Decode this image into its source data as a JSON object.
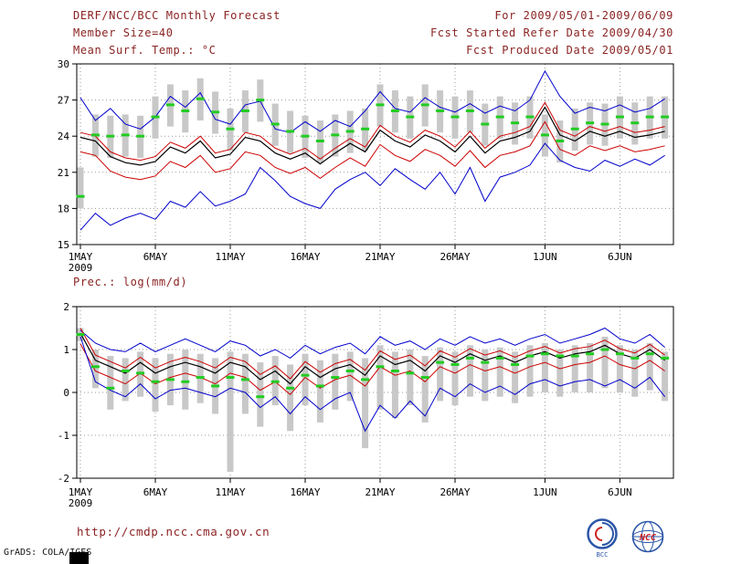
{
  "palette": {
    "header_text": "#8b2323",
    "grid": "#9a9a9a",
    "bar": "#c8c8c8",
    "obs": "#22cc22",
    "extreme": "#0000cc",
    "quartile": "#cc0000",
    "mean": "#000000"
  },
  "header": {
    "title": "DERF/NCC/BCC Monthly Forecast",
    "member_size": "Member Size=40",
    "variable": "Mean Surf. Temp.: °C",
    "period": "For 2009/05/01-2009/06/09",
    "refer_date": "Fcst Started Refer Date 2009/04/30",
    "produced_date": "Fcst Produced Date 2009/05/01"
  },
  "footer": {
    "url": "http://cmdp.ncc.cma.gov.cn",
    "credit": "GrADS: COLA/IGES",
    "logos": [
      {
        "label": "BCC"
      },
      {
        "label": "NCC"
      }
    ]
  },
  "chart_data": [
    {
      "type": "line",
      "title": "Mean Surf. Temp.: °C",
      "xlabel": "",
      "ylabel": "",
      "grid": true,
      "x_range": [
        1,
        40
      ],
      "ylim": [
        15,
        30
      ],
      "yticks": [
        15,
        18,
        21,
        24,
        27,
        30
      ],
      "x_ticks": [
        {
          "day": 1,
          "label": "1MAY",
          "sub": "2009"
        },
        {
          "day": 6,
          "label": "6MAY"
        },
        {
          "day": 11,
          "label": "11MAY"
        },
        {
          "day": 16,
          "label": "16MAY"
        },
        {
          "day": 21,
          "label": "21MAY"
        },
        {
          "day": 26,
          "label": "26MAY"
        },
        {
          "day": 32,
          "label": "1JUN"
        },
        {
          "day": 37,
          "label": "6JUN"
        }
      ],
      "bars": {
        "name": "ensemble-spread",
        "color": "#c8c8c8",
        "low": [
          18.0,
          22.3,
          22.2,
          22.3,
          22.2,
          23.8,
          24.8,
          24.3,
          25.3,
          24.2,
          22.8,
          24.3,
          25.2,
          23.2,
          22.6,
          22.2,
          21.8,
          22.3,
          22.6,
          22.8,
          24.8,
          24.3,
          23.8,
          24.8,
          24.3,
          23.8,
          24.3,
          23.2,
          23.8,
          23.3,
          23.8,
          22.3,
          21.8,
          22.8,
          23.3,
          23.2,
          23.8,
          23.3,
          23.8,
          23.8
        ],
        "high": [
          21.4,
          25.8,
          25.7,
          25.8,
          25.7,
          27.3,
          28.3,
          27.8,
          28.8,
          27.7,
          26.3,
          27.8,
          28.7,
          26.7,
          26.1,
          25.7,
          25.3,
          25.8,
          26.1,
          26.3,
          28.3,
          27.8,
          27.3,
          28.3,
          27.8,
          27.3,
          27.8,
          26.7,
          27.3,
          26.8,
          27.3,
          25.8,
          25.3,
          26.3,
          26.8,
          26.7,
          27.3,
          26.8,
          27.3,
          27.3
        ]
      },
      "series": [
        {
          "name": "ensemble-max",
          "color": "#0000cc",
          "width": 1,
          "values": [
            27.2,
            25.3,
            26.3,
            25.0,
            24.6,
            25.6,
            27.3,
            26.4,
            27.6,
            25.4,
            25.0,
            26.6,
            26.9,
            24.6,
            24.3,
            25.2,
            24.4,
            25.3,
            24.8,
            26.1,
            27.7,
            26.3,
            26.0,
            27.2,
            26.4,
            26.0,
            26.7,
            25.9,
            26.5,
            26.1,
            27.0,
            29.4,
            27.3,
            25.9,
            26.4,
            26.1,
            26.6,
            26.0,
            26.3,
            27.1
          ]
        },
        {
          "name": "upper-quartile",
          "color": "#cc0000",
          "width": 1,
          "values": [
            24.3,
            24.0,
            22.7,
            22.2,
            22.0,
            22.3,
            23.5,
            23.0,
            24.0,
            22.6,
            22.9,
            24.3,
            24.0,
            23.0,
            22.5,
            23.0,
            22.1,
            23.0,
            23.8,
            23.1,
            24.9,
            24.0,
            23.5,
            24.5,
            24.0,
            23.1,
            24.4,
            23.0,
            24.0,
            24.3,
            24.8,
            26.8,
            24.5,
            24.0,
            24.8,
            24.4,
            24.8,
            24.3,
            24.5,
            24.8
          ]
        },
        {
          "name": "ensemble-mean",
          "color": "#000000",
          "width": 1.2,
          "values": [
            23.9,
            23.6,
            22.3,
            21.8,
            21.6,
            21.9,
            23.1,
            22.6,
            23.6,
            22.2,
            22.5,
            23.9,
            23.6,
            22.6,
            22.1,
            22.6,
            21.7,
            22.6,
            23.4,
            22.7,
            24.5,
            23.6,
            23.1,
            24.1,
            23.6,
            22.7,
            24.0,
            22.6,
            23.6,
            23.9,
            24.4,
            26.4,
            24.1,
            23.6,
            24.4,
            24.0,
            24.4,
            23.9,
            24.1,
            24.4
          ]
        },
        {
          "name": "lower-quartile",
          "color": "#cc0000",
          "width": 1,
          "values": [
            22.7,
            22.4,
            21.1,
            20.6,
            20.4,
            20.7,
            21.9,
            21.4,
            22.4,
            21.0,
            21.3,
            22.7,
            22.4,
            21.4,
            20.9,
            21.4,
            20.5,
            21.4,
            22.2,
            21.5,
            23.3,
            22.4,
            21.9,
            22.9,
            22.4,
            21.5,
            22.8,
            21.4,
            22.4,
            22.7,
            23.2,
            25.2,
            22.9,
            22.4,
            23.2,
            22.8,
            23.2,
            22.7,
            22.9,
            23.2
          ]
        },
        {
          "name": "ensemble-min",
          "color": "#0000cc",
          "width": 1,
          "values": [
            16.2,
            17.6,
            16.6,
            17.2,
            17.6,
            17.1,
            18.6,
            18.1,
            19.4,
            18.2,
            18.6,
            19.2,
            21.4,
            20.3,
            19.0,
            18.4,
            18.0,
            19.6,
            20.4,
            21.0,
            19.9,
            21.3,
            20.4,
            19.6,
            21.0,
            19.2,
            21.4,
            18.6,
            20.6,
            21.0,
            21.6,
            23.4,
            22.0,
            21.4,
            21.1,
            22.0,
            21.5,
            22.1,
            21.6,
            22.4
          ]
        }
      ],
      "markers": {
        "name": "observation",
        "color": "#22cc22",
        "values": [
          19.0,
          24.1,
          24.0,
          24.1,
          24.0,
          25.6,
          26.6,
          26.1,
          27.1,
          26.0,
          24.6,
          26.1,
          27.0,
          25.0,
          24.4,
          24.0,
          23.6,
          24.1,
          24.4,
          24.6,
          26.6,
          26.1,
          25.6,
          26.6,
          26.1,
          25.6,
          26.1,
          25.0,
          25.6,
          25.1,
          25.6,
          24.1,
          23.6,
          24.6,
          25.1,
          25.0,
          25.6,
          25.1,
          25.6,
          25.6
        ]
      }
    },
    {
      "type": "line",
      "title": "Prec.: log(mm/d)",
      "xlabel": "",
      "ylabel": "",
      "grid": true,
      "x_range": [
        1,
        40
      ],
      "ylim": [
        -2,
        2
      ],
      "yticks": [
        -2,
        -1,
        0,
        1,
        2
      ],
      "x_ticks": [
        {
          "day": 1,
          "label": "1MAY",
          "sub": "2009"
        },
        {
          "day": 6,
          "label": "6MAY"
        },
        {
          "day": 11,
          "label": "11MAY"
        },
        {
          "day": 16,
          "label": "16MAY"
        },
        {
          "day": 21,
          "label": "21MAY"
        },
        {
          "day": 26,
          "label": "26MAY"
        },
        {
          "day": 32,
          "label": "1JUN"
        },
        {
          "day": 37,
          "label": "6JUN"
        }
      ],
      "bars": {
        "name": "ensemble-spread",
        "color": "#c8c8c8",
        "low": [
          1.2,
          0.1,
          -0.4,
          -0.2,
          -0.1,
          -0.45,
          -0.3,
          -0.4,
          -0.25,
          -0.5,
          -1.85,
          -0.5,
          -0.8,
          -0.3,
          -0.9,
          -0.3,
          -0.7,
          -0.4,
          -0.2,
          -1.3,
          -0.4,
          -0.6,
          -0.3,
          -0.7,
          -0.2,
          -0.3,
          -0.1,
          -0.2,
          -0.1,
          -0.25,
          -0.1,
          0.0,
          -0.1,
          0.0,
          0.0,
          0.1,
          0.0,
          -0.1,
          0.05,
          -0.2
        ],
        "high": [
          1.5,
          1.0,
          0.85,
          0.8,
          0.95,
          0.8,
          0.9,
          1.0,
          0.9,
          0.8,
          0.95,
          0.9,
          0.7,
          0.85,
          0.65,
          0.9,
          0.75,
          0.9,
          0.95,
          0.8,
          1.1,
          0.95,
          1.0,
          0.85,
          1.05,
          0.95,
          1.1,
          1.0,
          1.05,
          0.95,
          1.1,
          1.15,
          1.0,
          1.1,
          1.15,
          1.3,
          1.1,
          1.0,
          1.15,
          0.95
        ]
      },
      "series": [
        {
          "name": "ensemble-max",
          "color": "#0000cc",
          "width": 1,
          "values": [
            1.45,
            1.15,
            1.0,
            0.95,
            1.15,
            0.95,
            1.1,
            1.25,
            1.1,
            0.95,
            1.2,
            1.1,
            0.85,
            1.0,
            0.8,
            1.1,
            0.9,
            1.05,
            1.15,
            0.9,
            1.3,
            1.1,
            1.2,
            1.0,
            1.25,
            1.1,
            1.3,
            1.15,
            1.25,
            1.1,
            1.25,
            1.35,
            1.15,
            1.25,
            1.35,
            1.5,
            1.25,
            1.15,
            1.35,
            1.05
          ]
        },
        {
          "name": "upper-quartile",
          "color": "#cc0000",
          "width": 1,
          "values": [
            1.5,
            0.87,
            0.72,
            0.57,
            0.82,
            0.57,
            0.72,
            0.82,
            0.72,
            0.57,
            0.82,
            0.72,
            0.42,
            0.62,
            0.32,
            0.72,
            0.47,
            0.67,
            0.77,
            0.52,
            0.97,
            0.77,
            0.87,
            0.62,
            0.97,
            0.82,
            1.02,
            0.87,
            0.97,
            0.82,
            0.97,
            1.07,
            0.92,
            1.02,
            1.07,
            1.22,
            1.02,
            0.92,
            1.12,
            0.87
          ]
        },
        {
          "name": "ensemble-mean",
          "color": "#000000",
          "width": 1.2,
          "values": [
            1.38,
            0.75,
            0.6,
            0.45,
            0.7,
            0.45,
            0.6,
            0.7,
            0.6,
            0.45,
            0.7,
            0.6,
            0.3,
            0.5,
            0.2,
            0.6,
            0.35,
            0.55,
            0.65,
            0.4,
            0.85,
            0.65,
            0.75,
            0.5,
            0.85,
            0.7,
            0.9,
            0.75,
            0.85,
            0.7,
            0.85,
            0.95,
            0.8,
            0.9,
            0.95,
            1.1,
            0.9,
            0.8,
            1.0,
            0.75
          ]
        },
        {
          "name": "lower-quartile",
          "color": "#cc0000",
          "width": 1,
          "values": [
            1.13,
            0.5,
            0.35,
            0.2,
            0.45,
            0.2,
            0.35,
            0.45,
            0.35,
            0.2,
            0.45,
            0.35,
            0.05,
            0.25,
            -0.05,
            0.35,
            0.1,
            0.3,
            0.4,
            0.15,
            0.6,
            0.4,
            0.5,
            0.25,
            0.6,
            0.45,
            0.65,
            0.5,
            0.6,
            0.45,
            0.6,
            0.7,
            0.55,
            0.65,
            0.7,
            0.85,
            0.65,
            0.55,
            0.75,
            0.5
          ]
        },
        {
          "name": "ensemble-min",
          "color": "#0000cc",
          "width": 1,
          "values": [
            1.3,
            0.25,
            0.05,
            -0.1,
            0.2,
            -0.15,
            0.05,
            0.1,
            0.0,
            -0.1,
            0.1,
            0.0,
            -0.35,
            -0.1,
            -0.5,
            -0.1,
            -0.4,
            -0.15,
            0.0,
            -0.9,
            -0.3,
            -0.6,
            -0.2,
            -0.55,
            0.1,
            -0.1,
            0.2,
            0.0,
            0.15,
            -0.05,
            0.2,
            0.3,
            0.15,
            0.25,
            0.3,
            0.15,
            0.3,
            0.1,
            0.35,
            -0.1
          ]
        }
      ],
      "markers": {
        "name": "observation",
        "color": "#22cc22",
        "values": [
          1.35,
          0.6,
          0.1,
          0.5,
          0.45,
          0.25,
          0.3,
          0.25,
          0.35,
          0.15,
          0.35,
          0.3,
          -0.1,
          0.25,
          0.1,
          0.4,
          0.15,
          0.35,
          0.5,
          0.3,
          0.6,
          0.5,
          0.45,
          0.35,
          0.7,
          0.65,
          0.8,
          0.7,
          0.8,
          0.65,
          0.85,
          0.9,
          0.85,
          0.85,
          0.9,
          1.0,
          0.9,
          0.8,
          0.9,
          0.8
        ]
      }
    }
  ]
}
